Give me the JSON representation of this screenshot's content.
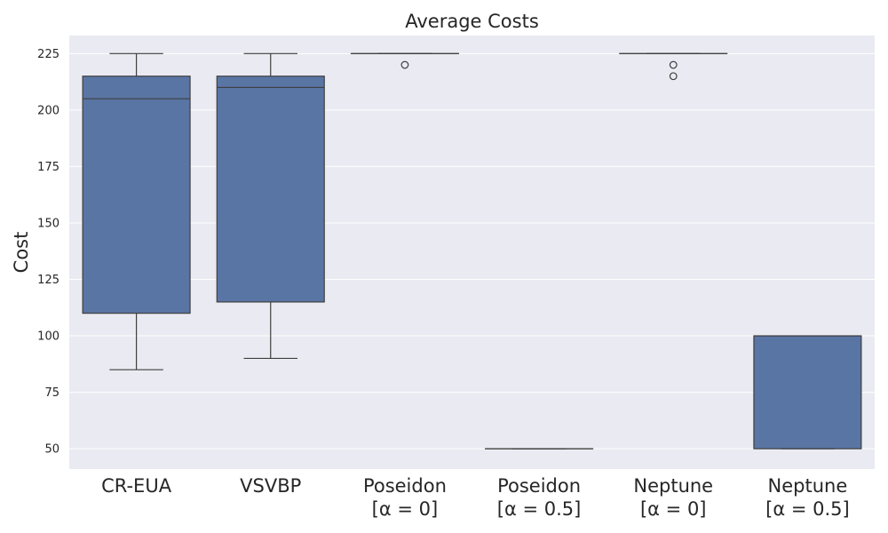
{
  "chart_data": {
    "type": "box",
    "title": "Average Costs",
    "xlabel": "",
    "ylabel": "Cost",
    "ylim": [
      41,
      233
    ],
    "yticks": [
      50,
      75,
      100,
      125,
      150,
      175,
      200,
      225
    ],
    "grid": true,
    "legend": "none",
    "colors": {
      "plot_bg": "#eaeaf2",
      "box_fill": "#5975a4",
      "line": "#3f3f3f",
      "grid": "#ffffff",
      "text": "#262626"
    },
    "categories": [
      [
        "CR-EUA"
      ],
      [
        "VSVBP"
      ],
      [
        "Poseidon",
        "[α = 0]"
      ],
      [
        "Poseidon",
        "[α = 0.5]"
      ],
      [
        "Neptune",
        "[α = 0]"
      ],
      [
        "Neptune",
        "[α = 0.5]"
      ]
    ],
    "boxes": [
      {
        "whisker_low": 85,
        "q1": 110,
        "median": 205,
        "q3": 215,
        "whisker_high": 225,
        "outliers": []
      },
      {
        "whisker_low": 90,
        "q1": 115,
        "median": 210,
        "q3": 215,
        "whisker_high": 225,
        "outliers": []
      },
      {
        "whisker_low": 225,
        "q1": 225,
        "median": 225,
        "q3": 225,
        "whisker_high": 225,
        "outliers": [
          220
        ]
      },
      {
        "whisker_low": 50,
        "q1": 50,
        "median": 50,
        "q3": 50,
        "whisker_high": 50,
        "outliers": []
      },
      {
        "whisker_low": 225,
        "q1": 225,
        "median": 225,
        "q3": 225,
        "whisker_high": 225,
        "outliers": [
          220,
          215
        ]
      },
      {
        "whisker_low": 50,
        "q1": 50,
        "median": 100,
        "q3": 100,
        "whisker_high": 100,
        "outliers": []
      }
    ]
  }
}
